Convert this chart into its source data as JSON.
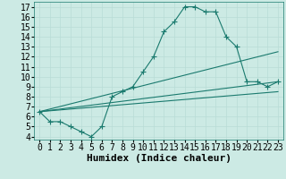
{
  "title": "",
  "xlabel": "Humidex (Indice chaleur)",
  "ylabel": "",
  "bg_color": "#cceae4",
  "line_color": "#1a7a6e",
  "xlim": [
    -0.5,
    23.5
  ],
  "ylim": [
    3.7,
    17.5
  ],
  "xticks": [
    0,
    1,
    2,
    3,
    4,
    5,
    6,
    7,
    8,
    9,
    10,
    11,
    12,
    13,
    14,
    15,
    16,
    17,
    18,
    19,
    20,
    21,
    22,
    23
  ],
  "yticks": [
    4,
    5,
    6,
    7,
    8,
    9,
    10,
    11,
    12,
    13,
    14,
    15,
    16,
    17
  ],
  "line1_x": [
    0,
    1,
    2,
    3,
    4,
    5,
    6,
    7,
    8,
    9,
    10,
    11,
    12,
    13,
    14,
    15,
    16,
    17,
    18,
    19,
    20,
    21,
    22,
    23
  ],
  "line1_y": [
    6.5,
    5.5,
    5.5,
    5.0,
    4.5,
    4.0,
    5.0,
    8.0,
    8.5,
    9.0,
    10.5,
    12.0,
    14.5,
    15.5,
    17.0,
    17.0,
    16.5,
    16.5,
    14.0,
    13.0,
    9.5,
    9.5,
    9.0,
    9.5
  ],
  "line2_x": [
    0,
    23
  ],
  "line2_y": [
    6.5,
    9.5
  ],
  "line3_x": [
    0,
    23
  ],
  "line3_y": [
    6.5,
    12.5
  ],
  "line4_x": [
    0,
    23
  ],
  "line4_y": [
    6.5,
    8.5
  ],
  "grid_color": "#b8ddd7",
  "marker": "+",
  "marker_size": 4,
  "font_size_label": 8,
  "font_size_tick": 7
}
